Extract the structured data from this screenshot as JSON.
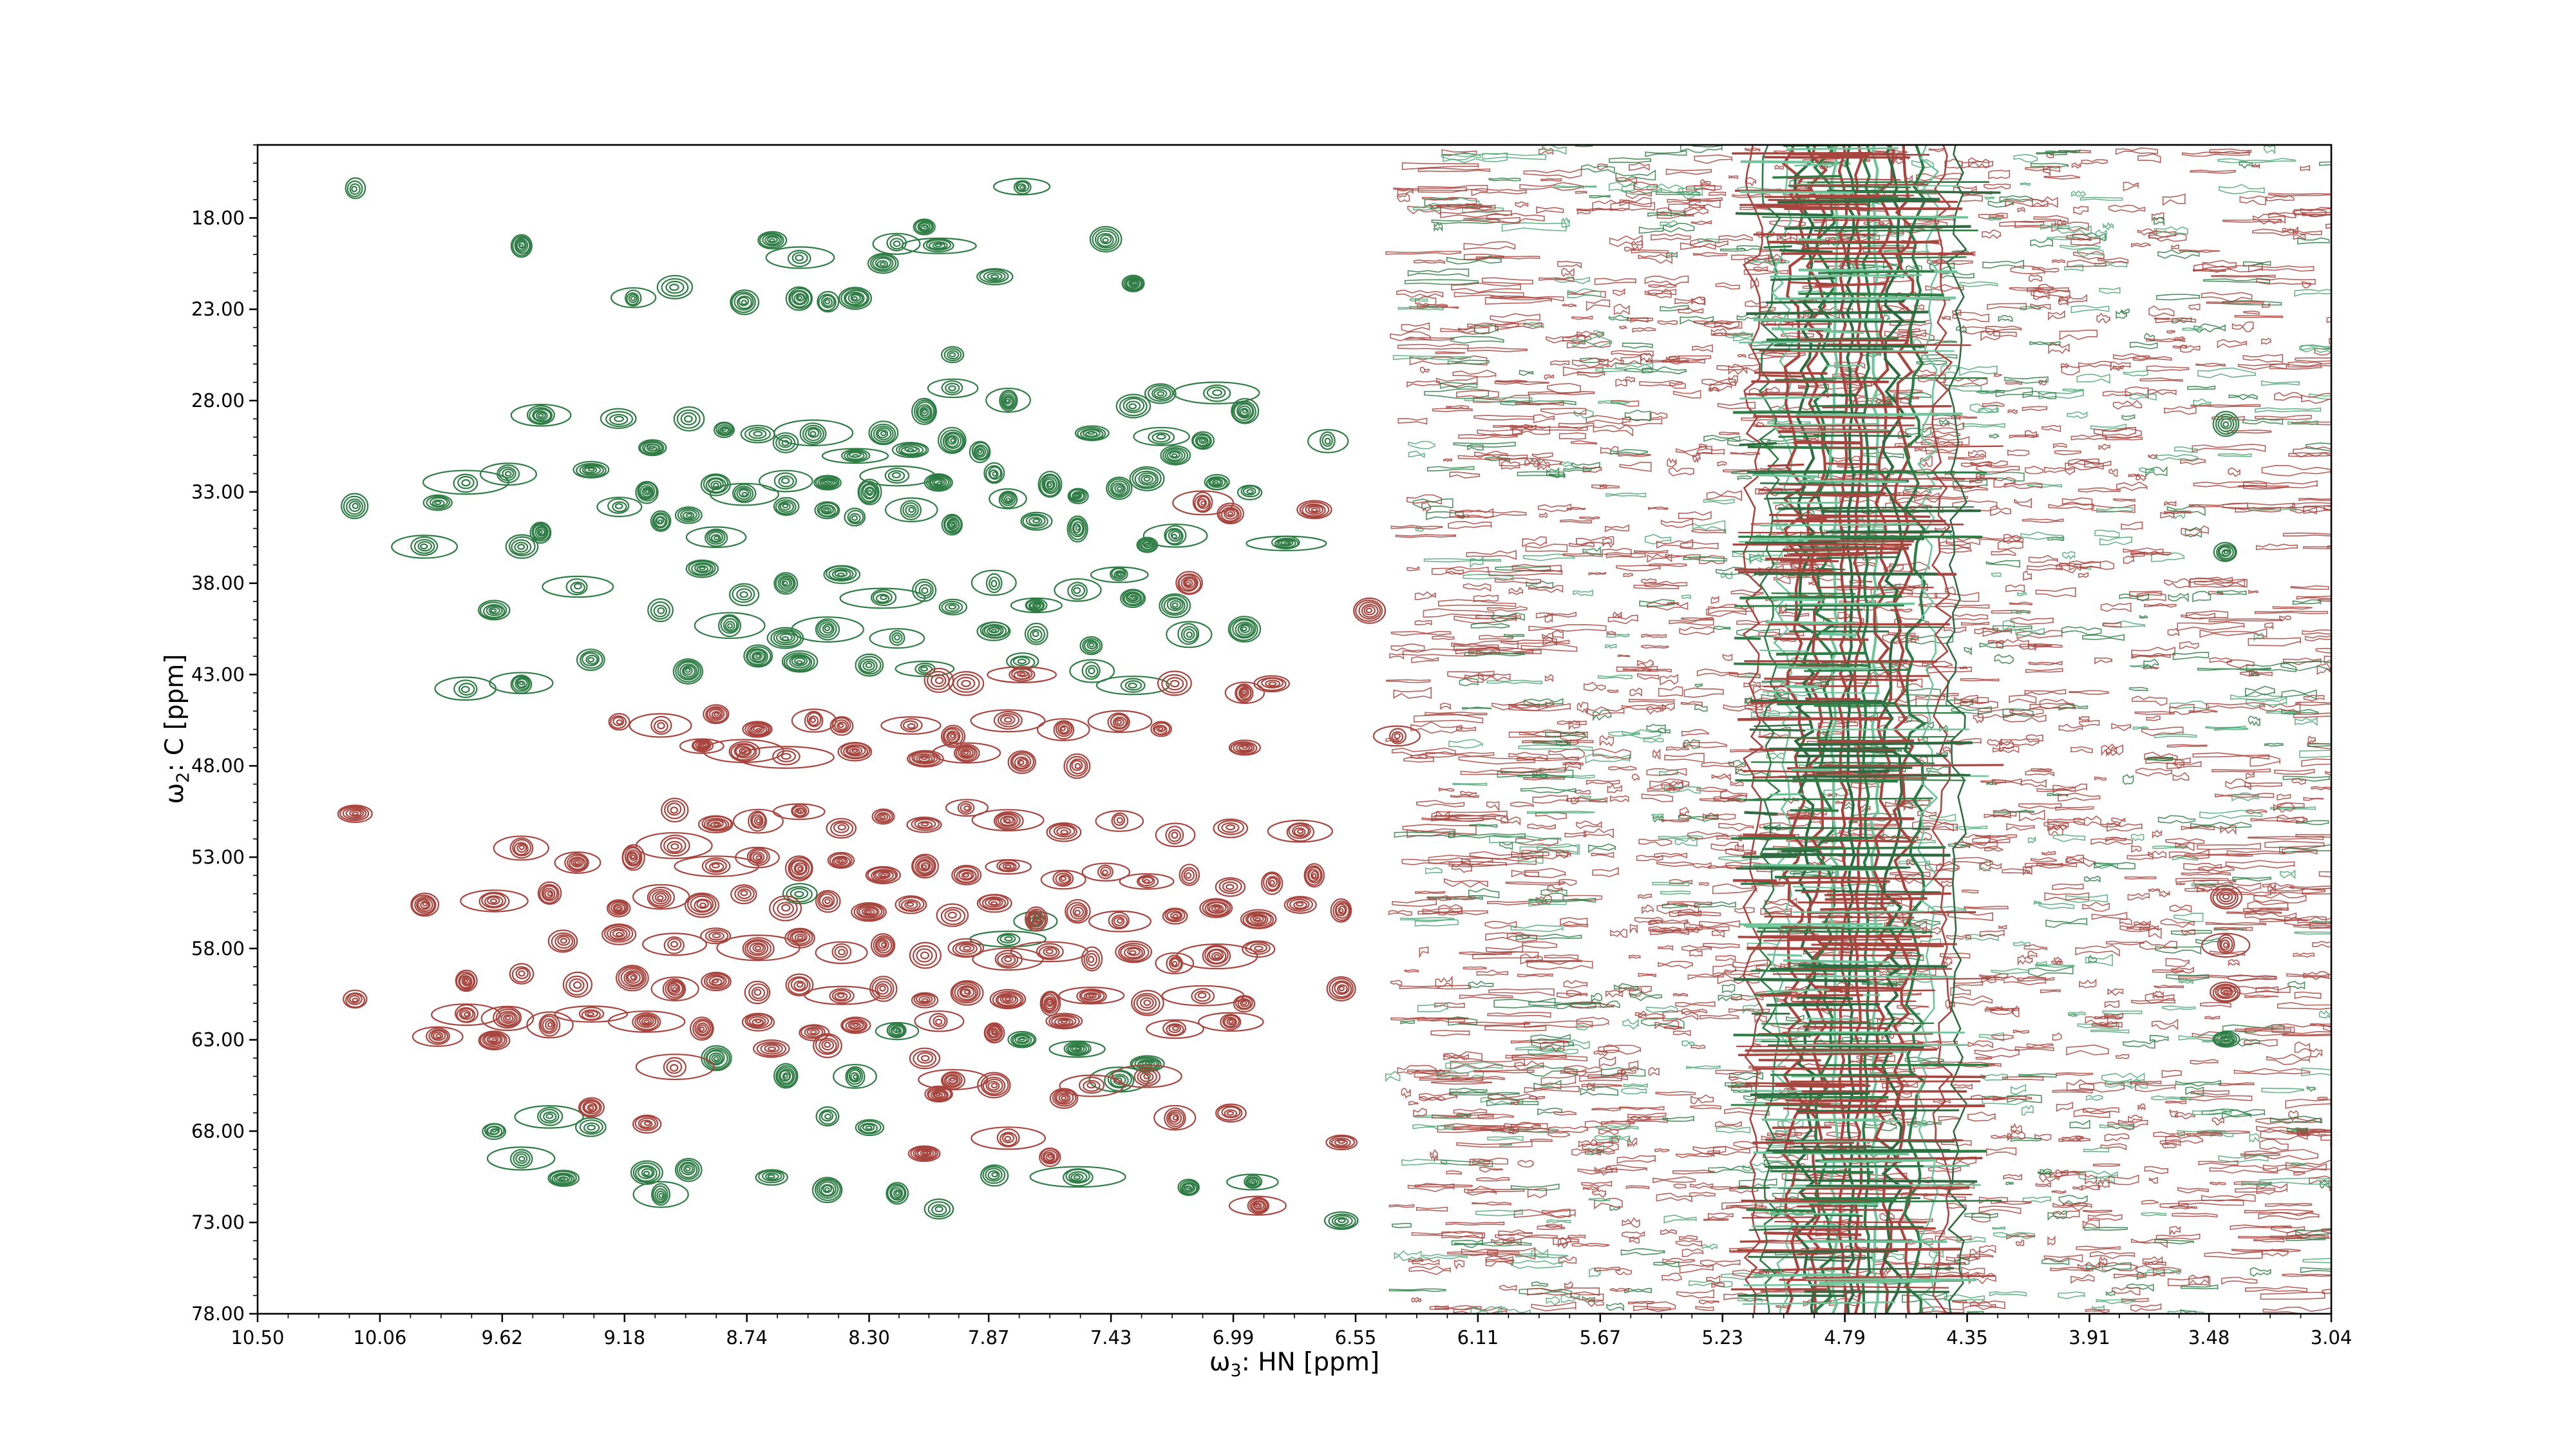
{
  "chart_data": {
    "type": "contour",
    "xlabel_symbol": "ω",
    "xlabel_sub": "3",
    "xlabel_text": ": HN [ppm]",
    "ylabel_symbol": "ω",
    "ylabel_sub": "2",
    "ylabel_text": ": C [ppm]",
    "xlim": [
      10.5,
      3.04
    ],
    "ylim": [
      78.0,
      14.0
    ],
    "x_ticks": [
      "10.50",
      "10.06",
      "9.62",
      "9.18",
      "8.74",
      "8.30",
      "7.87",
      "7.43",
      "6.99",
      "6.55",
      "6.11",
      "5.67",
      "5.23",
      "4.79",
      "4.35",
      "3.91",
      "3.48",
      "3.04"
    ],
    "y_ticks": [
      "18.00",
      "23.00",
      "28.00",
      "33.00",
      "38.00",
      "43.00",
      "48.00",
      "53.00",
      "58.00",
      "63.00",
      "68.00",
      "73.00",
      "78.00"
    ],
    "water_band_center_ppm": 4.76,
    "series": [
      {
        "sign": "positive",
        "color": "#2e7d45",
        "peaks": [
          [
            10.15,
            16.4
          ],
          [
            9.55,
            19.5
          ],
          [
            9.15,
            22.4
          ],
          [
            9.0,
            21.8
          ],
          [
            8.75,
            22.6
          ],
          [
            8.65,
            19.2
          ],
          [
            8.55,
            20.2
          ],
          [
            8.55,
            22.4
          ],
          [
            8.45,
            22.6
          ],
          [
            8.35,
            22.4
          ],
          [
            8.25,
            20.5
          ],
          [
            8.2,
            19.4
          ],
          [
            8.1,
            18.5
          ],
          [
            8.05,
            19.5
          ],
          [
            7.85,
            21.2
          ],
          [
            7.45,
            19.2
          ],
          [
            7.35,
            21.6
          ],
          [
            7.75,
            16.3
          ],
          [
            8.0,
            25.5
          ],
          [
            8.0,
            27.3
          ],
          [
            7.8,
            28.0
          ],
          [
            8.1,
            28.6
          ],
          [
            7.35,
            28.3
          ],
          [
            7.25,
            27.6
          ],
          [
            7.05,
            27.6
          ],
          [
            6.95,
            28.6
          ],
          [
            9.48,
            28.8
          ],
          [
            9.2,
            29.0
          ],
          [
            9.08,
            30.6
          ],
          [
            8.95,
            29.0
          ],
          [
            8.82,
            29.6
          ],
          [
            8.7,
            29.8
          ],
          [
            8.6,
            30.3
          ],
          [
            8.5,
            29.8
          ],
          [
            8.35,
            31.0
          ],
          [
            8.25,
            29.8
          ],
          [
            8.15,
            30.7
          ],
          [
            8.0,
            30.2
          ],
          [
            7.9,
            30.8
          ],
          [
            7.5,
            29.8
          ],
          [
            7.2,
            31.0
          ],
          [
            7.1,
            30.2
          ],
          [
            9.75,
            32.5
          ],
          [
            9.6,
            32.0
          ],
          [
            9.3,
            31.8
          ],
          [
            9.1,
            33.0
          ],
          [
            8.95,
            34.3
          ],
          [
            8.85,
            32.6
          ],
          [
            8.75,
            33.1
          ],
          [
            8.6,
            32.4
          ],
          [
            8.45,
            32.5
          ],
          [
            8.3,
            33.0
          ],
          [
            8.2,
            32.1
          ],
          [
            8.05,
            32.5
          ],
          [
            7.85,
            32.0
          ],
          [
            7.8,
            33.4
          ],
          [
            7.65,
            32.6
          ],
          [
            7.55,
            33.2
          ],
          [
            7.4,
            32.8
          ],
          [
            7.3,
            32.3
          ],
          [
            7.05,
            32.5
          ],
          [
            6.93,
            33.0
          ],
          [
            10.15,
            33.8
          ],
          [
            9.85,
            33.6
          ],
          [
            9.48,
            35.2
          ],
          [
            9.2,
            33.8
          ],
          [
            9.05,
            34.6
          ],
          [
            8.85,
            35.5
          ],
          [
            8.6,
            33.8
          ],
          [
            8.45,
            34.0
          ],
          [
            8.35,
            34.4
          ],
          [
            8.15,
            34.0
          ],
          [
            8.0,
            34.8
          ],
          [
            7.7,
            34.6
          ],
          [
            7.55,
            35.0
          ],
          [
            7.3,
            35.9
          ],
          [
            7.2,
            35.4
          ],
          [
            6.8,
            35.8
          ],
          [
            9.9,
            36.0
          ],
          [
            9.55,
            36.0
          ],
          [
            8.9,
            37.2
          ],
          [
            8.75,
            38.6
          ],
          [
            8.6,
            38.0
          ],
          [
            8.4,
            37.5
          ],
          [
            8.25,
            38.8
          ],
          [
            8.1,
            38.4
          ],
          [
            8.0,
            39.3
          ],
          [
            7.85,
            38.0
          ],
          [
            7.7,
            39.2
          ],
          [
            7.55,
            38.4
          ],
          [
            7.4,
            37.5
          ],
          [
            7.35,
            38.8
          ],
          [
            7.2,
            39.2
          ],
          [
            9.65,
            39.5
          ],
          [
            9.35,
            38.2
          ],
          [
            9.05,
            39.5
          ],
          [
            8.8,
            40.3
          ],
          [
            8.6,
            41.0
          ],
          [
            8.45,
            40.5
          ],
          [
            8.2,
            41.0
          ],
          [
            7.85,
            40.6
          ],
          [
            7.7,
            40.8
          ],
          [
            7.5,
            41.4
          ],
          [
            7.15,
            40.8
          ],
          [
            6.95,
            40.5
          ],
          [
            9.3,
            42.2
          ],
          [
            8.95,
            42.8
          ],
          [
            8.7,
            42.0
          ],
          [
            8.55,
            42.3
          ],
          [
            8.3,
            42.5
          ],
          [
            8.1,
            42.7
          ],
          [
            7.75,
            42.3
          ],
          [
            7.5,
            42.8
          ],
          [
            7.35,
            43.6
          ],
          [
            9.75,
            43.8
          ],
          [
            9.55,
            43.5
          ],
          [
            8.55,
            55.0
          ],
          [
            7.8,
            57.5
          ],
          [
            7.7,
            56.5
          ],
          [
            8.2,
            62.5
          ],
          [
            7.75,
            63.0
          ],
          [
            7.55,
            63.5
          ],
          [
            7.3,
            64.3
          ],
          [
            8.85,
            64.0
          ],
          [
            8.6,
            65.0
          ],
          [
            8.35,
            65.0
          ],
          [
            7.4,
            65.2
          ],
          [
            9.45,
            67.2
          ],
          [
            9.3,
            67.8
          ],
          [
            8.45,
            67.2
          ],
          [
            8.3,
            67.8
          ],
          [
            9.65,
            68.0
          ],
          [
            9.55,
            69.5
          ],
          [
            9.4,
            70.6
          ],
          [
            9.05,
            71.5
          ],
          [
            9.1,
            70.3
          ],
          [
            8.95,
            70.1
          ],
          [
            8.65,
            70.5
          ],
          [
            8.45,
            71.2
          ],
          [
            8.2,
            71.4
          ],
          [
            8.05,
            72.3
          ],
          [
            7.85,
            70.4
          ],
          [
            7.55,
            70.5
          ],
          [
            7.15,
            71.1
          ],
          [
            6.92,
            70.8
          ],
          [
            6.6,
            72.9
          ],
          [
            3.42,
            63.0
          ],
          [
            3.42,
            36.3
          ],
          [
            3.42,
            29.3
          ],
          [
            6.65,
            30.2
          ],
          [
            7.25,
            30.0
          ]
        ]
      },
      {
        "sign": "negative",
        "color": "#a8453f",
        "peaks": [
          [
            7.1,
            33.6
          ],
          [
            7.0,
            34.2
          ],
          [
            6.7,
            34.0
          ],
          [
            7.15,
            38.0
          ],
          [
            6.5,
            39.5
          ],
          [
            8.05,
            43.3
          ],
          [
            7.95,
            43.5
          ],
          [
            7.75,
            43.0
          ],
          [
            7.2,
            43.5
          ],
          [
            6.95,
            44.0
          ],
          [
            6.85,
            43.5
          ],
          [
            9.2,
            45.6
          ],
          [
            9.05,
            45.8
          ],
          [
            8.85,
            45.2
          ],
          [
            8.7,
            46.0
          ],
          [
            8.5,
            45.5
          ],
          [
            8.4,
            45.8
          ],
          [
            8.15,
            45.8
          ],
          [
            8.0,
            46.4
          ],
          [
            7.8,
            45.5
          ],
          [
            7.6,
            46.0
          ],
          [
            7.4,
            45.6
          ],
          [
            7.25,
            46.0
          ],
          [
            6.4,
            46.4
          ],
          [
            8.9,
            46.9
          ],
          [
            8.75,
            47.2
          ],
          [
            8.6,
            47.5
          ],
          [
            8.35,
            47.2
          ],
          [
            8.1,
            47.6
          ],
          [
            7.95,
            47.3
          ],
          [
            7.75,
            47.8
          ],
          [
            7.55,
            48.0
          ],
          [
            6.95,
            47.0
          ],
          [
            10.15,
            50.6
          ],
          [
            9.0,
            50.4
          ],
          [
            8.85,
            51.2
          ],
          [
            8.7,
            51.0
          ],
          [
            8.55,
            50.5
          ],
          [
            8.4,
            51.4
          ],
          [
            8.25,
            50.8
          ],
          [
            8.1,
            51.2
          ],
          [
            7.95,
            50.3
          ],
          [
            7.8,
            51.0
          ],
          [
            7.6,
            51.6
          ],
          [
            7.4,
            51.0
          ],
          [
            7.2,
            51.8
          ],
          [
            7.0,
            51.4
          ],
          [
            6.75,
            51.6
          ],
          [
            9.55,
            52.5
          ],
          [
            9.35,
            53.3
          ],
          [
            9.15,
            53.0
          ],
          [
            9.0,
            52.4
          ],
          [
            8.85,
            53.5
          ],
          [
            8.7,
            53.0
          ],
          [
            8.55,
            53.6
          ],
          [
            8.4,
            53.2
          ],
          [
            8.25,
            54.0
          ],
          [
            8.1,
            53.5
          ],
          [
            7.95,
            54.0
          ],
          [
            7.8,
            53.5
          ],
          [
            7.6,
            54.2
          ],
          [
            7.45,
            53.8
          ],
          [
            7.3,
            54.3
          ],
          [
            7.15,
            54.0
          ],
          [
            7.0,
            54.6
          ],
          [
            6.85,
            54.4
          ],
          [
            6.7,
            54.0
          ],
          [
            9.9,
            55.6
          ],
          [
            9.65,
            55.4
          ],
          [
            9.45,
            55.0
          ],
          [
            9.2,
            55.8
          ],
          [
            9.05,
            55.2
          ],
          [
            8.9,
            55.6
          ],
          [
            8.75,
            55.0
          ],
          [
            8.6,
            55.8
          ],
          [
            8.45,
            55.4
          ],
          [
            8.3,
            56.0
          ],
          [
            8.15,
            55.6
          ],
          [
            8.0,
            56.2
          ],
          [
            7.85,
            55.5
          ],
          [
            7.7,
            56.4
          ],
          [
            7.55,
            56.0
          ],
          [
            7.4,
            56.5
          ],
          [
            7.2,
            56.2
          ],
          [
            7.05,
            55.8
          ],
          [
            6.9,
            56.4
          ],
          [
            6.75,
            55.6
          ],
          [
            6.6,
            55.9
          ],
          [
            9.4,
            57.6
          ],
          [
            9.2,
            57.2
          ],
          [
            9.0,
            57.8
          ],
          [
            8.85,
            57.3
          ],
          [
            8.7,
            58.0
          ],
          [
            8.55,
            57.4
          ],
          [
            8.4,
            58.2
          ],
          [
            8.25,
            57.8
          ],
          [
            8.1,
            58.4
          ],
          [
            7.95,
            58.0
          ],
          [
            7.8,
            58.6
          ],
          [
            7.65,
            58.2
          ],
          [
            7.5,
            58.6
          ],
          [
            7.35,
            58.2
          ],
          [
            7.2,
            58.8
          ],
          [
            7.05,
            58.4
          ],
          [
            6.9,
            58.0
          ],
          [
            9.75,
            59.8
          ],
          [
            9.55,
            59.4
          ],
          [
            9.35,
            60.0
          ],
          [
            9.15,
            59.6
          ],
          [
            9.0,
            60.2
          ],
          [
            8.85,
            59.8
          ],
          [
            8.7,
            60.4
          ],
          [
            8.55,
            60.0
          ],
          [
            8.4,
            60.6
          ],
          [
            8.25,
            60.2
          ],
          [
            8.1,
            60.8
          ],
          [
            7.95,
            60.4
          ],
          [
            7.8,
            60.8
          ],
          [
            7.65,
            61.0
          ],
          [
            7.5,
            60.6
          ],
          [
            7.3,
            61.0
          ],
          [
            7.1,
            60.6
          ],
          [
            6.95,
            61.0
          ],
          [
            6.6,
            60.2
          ],
          [
            10.15,
            60.8
          ],
          [
            9.75,
            61.6
          ],
          [
            9.6,
            61.8
          ],
          [
            9.45,
            62.2
          ],
          [
            9.3,
            61.6
          ],
          [
            9.1,
            62.0
          ],
          [
            8.9,
            62.4
          ],
          [
            8.7,
            62.0
          ],
          [
            8.5,
            62.6
          ],
          [
            8.35,
            62.2
          ],
          [
            8.05,
            62.0
          ],
          [
            7.85,
            62.6
          ],
          [
            7.6,
            62.0
          ],
          [
            7.2,
            62.4
          ],
          [
            7.0,
            62.0
          ],
          [
            9.85,
            62.8
          ],
          [
            9.65,
            63.0
          ],
          [
            8.65,
            63.5
          ],
          [
            8.45,
            63.3
          ],
          [
            9.0,
            64.5
          ],
          [
            8.1,
            64.0
          ],
          [
            8.0,
            65.2
          ],
          [
            7.85,
            65.5
          ],
          [
            7.5,
            65.5
          ],
          [
            7.3,
            65.0
          ],
          [
            7.6,
            66.2
          ],
          [
            8.05,
            66.0
          ],
          [
            9.3,
            66.7
          ],
          [
            9.1,
            67.6
          ],
          [
            7.2,
            67.3
          ],
          [
            7.0,
            67.0
          ],
          [
            7.8,
            68.4
          ],
          [
            8.1,
            69.2
          ],
          [
            7.65,
            69.4
          ],
          [
            6.9,
            72.1
          ],
          [
            6.6,
            68.6
          ],
          [
            3.42,
            57.8
          ],
          [
            3.42,
            55.2
          ],
          [
            3.42,
            60.4
          ]
        ]
      }
    ]
  }
}
